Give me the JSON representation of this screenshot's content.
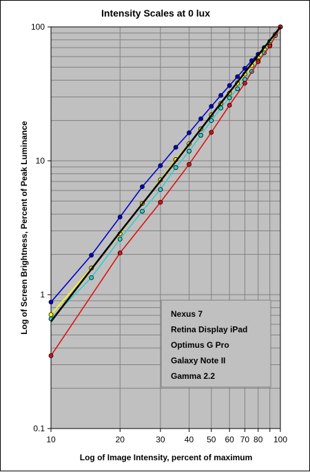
{
  "chart_data": {
    "type": "line",
    "title": "Intensity Scales at 0 lux",
    "xlabel": "Log of Image Intensity, percent of maximum",
    "ylabel": "Log of Screen Brightness, Percent of Peak Luminance",
    "x_scale": "log",
    "y_scale": "log",
    "xlim": [
      10,
      100
    ],
    "ylim": [
      0.1,
      100
    ],
    "grid": true,
    "legend_position": "bottom-right",
    "x_ticks": [
      "10",
      "20",
      "30",
      "40",
      "50",
      "60",
      "70",
      "80",
      "100"
    ],
    "y_ticks": [
      "0.1",
      "1",
      "10",
      "100"
    ],
    "x": [
      10,
      15,
      20,
      25,
      30,
      35,
      40,
      45,
      50,
      55,
      60,
      65,
      70,
      75,
      80,
      85,
      90,
      95,
      100
    ],
    "series": [
      {
        "name": "Nexus 7",
        "color": "#0000cc",
        "values": [
          0.88,
          1.97,
          3.8,
          6.4,
          9.2,
          12.6,
          16.2,
          20.6,
          25.5,
          30.8,
          36.5,
          42.5,
          49.0,
          56.0,
          62.5,
          70.0,
          78.0,
          87.0,
          100
        ]
      },
      {
        "name": "Retina Display iPad",
        "color": "#ffff00",
        "values": [
          0.71,
          1.58,
          2.85,
          4.8,
          7.2,
          10.2,
          13.4,
          17.3,
          22.0,
          26.8,
          32.0,
          38.0,
          44.5,
          51.5,
          59.0,
          68.0,
          77.0,
          88.0,
          100
        ]
      },
      {
        "name": "Optimus G Pro",
        "color": "#33cccc",
        "values": [
          0.66,
          1.34,
          2.6,
          4.2,
          6.1,
          8.9,
          11.8,
          15.5,
          20.0,
          24.8,
          29.5,
          34.5,
          40.5,
          46.5,
          56.0,
          64.0,
          74.0,
          86.0,
          100
        ]
      },
      {
        "name": "Galaxy Note II",
        "color": "#dd1111",
        "values": [
          0.35,
          null,
          2.05,
          null,
          4.9,
          null,
          9.4,
          null,
          16.3,
          null,
          26.0,
          null,
          38.0,
          null,
          55.0,
          null,
          72.0,
          null,
          100
        ]
      },
      {
        "name": "Gamma 2.2",
        "color": "#000000",
        "values": [
          0.63,
          1.55,
          2.93,
          4.76,
          7.07,
          9.9,
          13.3,
          17.2,
          21.8,
          26.9,
          32.5,
          38.7,
          45.6,
          53.1,
          61.2,
          70.0,
          79.3,
          89.3,
          100
        ]
      }
    ]
  }
}
